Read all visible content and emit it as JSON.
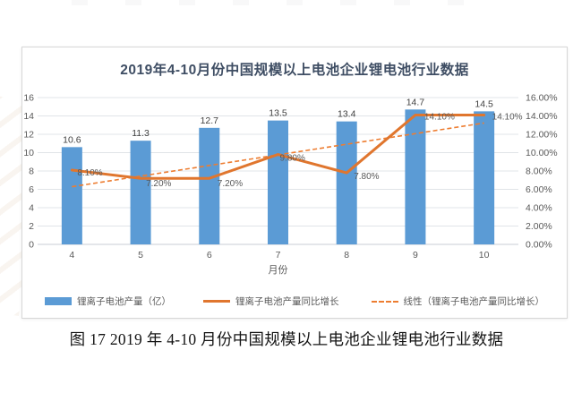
{
  "figure": {
    "caption": "图 17 2019 年 4-10 月份中国规模以上电池企业锂电池行业数据"
  },
  "colors": {
    "bar": "#5B9BD5",
    "line": "#E0762E",
    "trend": "#ED7D31",
    "grid": "#e0e4e8",
    "axis_line": "#c9ced4",
    "tick_text": "#595959",
    "bar_label_text": "#404040",
    "title_text": "#3e4d63"
  },
  "chart_data": {
    "type": "bar",
    "title": "2019年4-10月份中国规模以上电池企业锂电池行业数据",
    "categories": [
      "4",
      "5",
      "6",
      "7",
      "8",
      "9",
      "10"
    ],
    "xlabel": "月份",
    "series": [
      {
        "name": "锂离子电池产量（亿）",
        "type": "bar",
        "axis": "left",
        "values": [
          10.6,
          11.3,
          12.7,
          13.5,
          13.4,
          14.7,
          14.5
        ],
        "labels": [
          "10.6",
          "11.3",
          "12.7",
          "13.5",
          "13.4",
          "14.7",
          "14.5"
        ]
      },
      {
        "name": "锂离子电池产量同比增长",
        "type": "line",
        "axis": "right",
        "values": [
          8.1,
          7.2,
          7.2,
          9.8,
          7.8,
          14.1,
          14.1
        ],
        "labels": [
          "8.10%",
          "7.20%",
          "7.20%",
          "9.80%",
          "7.80%",
          "14.10%",
          "14.10%"
        ]
      },
      {
        "name": "线性（锂离子电池产量同比增长）",
        "type": "trendline",
        "axis": "right",
        "derived_from": "锂离子电池产量同比增长"
      }
    ],
    "left_axis": {
      "min": 0,
      "max": 16,
      "step": 2,
      "ticks": [
        "0",
        "2",
        "4",
        "6",
        "8",
        "10",
        "12",
        "14",
        "16"
      ]
    },
    "right_axis": {
      "min": 0,
      "max": 16,
      "step": 2,
      "ticks": [
        "0.00%",
        "2.00%",
        "4.00%",
        "6.00%",
        "8.00%",
        "10.00%",
        "12.00%",
        "14.00%",
        "16.00%"
      ]
    },
    "grid": true,
    "legend_position": "bottom"
  }
}
